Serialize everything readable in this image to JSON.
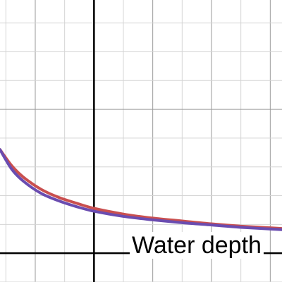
{
  "chart_data": {
    "type": "line",
    "title": "",
    "xlabel": "",
    "ylabel": "",
    "xlim": [
      -0.8,
      1.6
    ],
    "ylim": [
      -0.025,
      0.22
    ],
    "grid": true,
    "minor_step_x": 0.25,
    "major_step_x": 0.5,
    "minor_step_y": 0.025,
    "major_step_y": 0.125,
    "annotations": [
      {
        "text": "Water depth"
      }
    ],
    "series": [
      {
        "color": "#c94f4f",
        "points": [
          [
            -0.8,
            0.09
          ],
          [
            -0.7,
            0.076
          ],
          [
            -0.6,
            0.066
          ],
          [
            -0.45,
            0.0555
          ],
          [
            -0.3,
            0.0485
          ],
          [
            -0.15,
            0.0435
          ],
          [
            0.0,
            0.039
          ],
          [
            0.25,
            0.034
          ],
          [
            0.5,
            0.0305
          ],
          [
            0.75,
            0.028
          ],
          [
            1.0,
            0.0255
          ],
          [
            1.25,
            0.0235
          ],
          [
            1.6,
            0.0215
          ]
        ]
      },
      {
        "color": "#6a4cb0",
        "points": [
          [
            -0.8,
            0.09
          ],
          [
            -0.7,
            0.073
          ],
          [
            -0.6,
            0.0625
          ],
          [
            -0.45,
            0.052
          ],
          [
            -0.3,
            0.0455
          ],
          [
            -0.15,
            0.0405
          ],
          [
            0.0,
            0.0365
          ],
          [
            0.25,
            0.032
          ],
          [
            0.5,
            0.029
          ],
          [
            0.75,
            0.0265
          ],
          [
            1.0,
            0.0245
          ],
          [
            1.25,
            0.0225
          ],
          [
            1.6,
            0.0205
          ]
        ]
      }
    ]
  }
}
